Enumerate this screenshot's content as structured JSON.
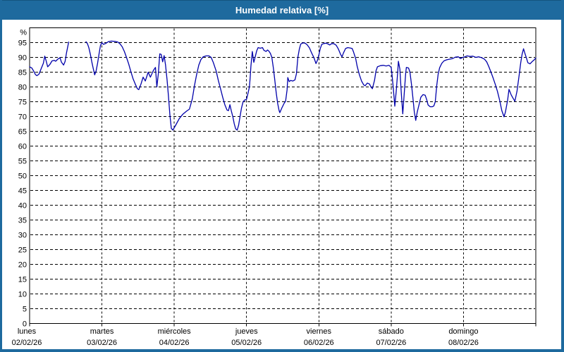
{
  "window": {
    "title": "Humedad relativa [%]",
    "titlebar_color": "#1e6a9e",
    "frame_color": "#1e6a9e"
  },
  "chart_data": {
    "type": "line",
    "title": "Humedad relativa [%]",
    "y_unit": "%",
    "ylim": [
      0,
      100
    ],
    "yticks": [
      0,
      5,
      10,
      15,
      20,
      25,
      30,
      35,
      40,
      45,
      50,
      55,
      60,
      65,
      70,
      75,
      80,
      85,
      90,
      95
    ],
    "grid": "dashed",
    "legend": "none",
    "line_color": "#0000aa",
    "x_range_days": 7,
    "days": [
      {
        "name": "lunes",
        "date": "02/02/26"
      },
      {
        "name": "martes",
        "date": "03/02/26"
      },
      {
        "name": "miércoles",
        "date": "04/02/26"
      },
      {
        "name": "jueves",
        "date": "05/02/26"
      },
      {
        "name": "viernes",
        "date": "06/02/26"
      },
      {
        "name": "sábado",
        "date": "07/02/26"
      },
      {
        "name": "domingo",
        "date": "08/02/26"
      }
    ],
    "series": [
      {
        "name": "Humedad relativa",
        "unit": "%",
        "x_unit": "days_since_monday_00h",
        "segments": [
          [
            [
              0.0,
              86.8
            ],
            [
              0.03,
              86.4
            ],
            [
              0.06,
              85.2
            ],
            [
              0.08,
              84.2
            ],
            [
              0.1,
              83.8
            ],
            [
              0.13,
              84.3
            ],
            [
              0.16,
              86.2
            ],
            [
              0.19,
              88.0
            ],
            [
              0.21,
              90.4
            ],
            [
              0.23,
              88.7
            ],
            [
              0.25,
              86.8
            ],
            [
              0.28,
              87.6
            ],
            [
              0.31,
              88.8
            ],
            [
              0.34,
              89.0
            ],
            [
              0.36,
              88.7
            ],
            [
              0.39,
              89.4
            ],
            [
              0.42,
              89.9
            ],
            [
              0.44,
              88.4
            ],
            [
              0.47,
              87.4
            ],
            [
              0.49,
              88.6
            ],
            [
              0.51,
              91.5
            ],
            [
              0.53,
              94.0
            ],
            [
              0.54,
              95.2
            ]
          ],
          [
            [
              0.78,
              95.3
            ],
            [
              0.8,
              94.6
            ],
            [
              0.82,
              93.2
            ],
            [
              0.84,
              91.0
            ],
            [
              0.86,
              88.5
            ],
            [
              0.88,
              86.2
            ],
            [
              0.9,
              84.1
            ],
            [
              0.92,
              85.5
            ],
            [
              0.94,
              88.0
            ],
            [
              0.96,
              91.2
            ],
            [
              0.98,
              94.0
            ],
            [
              1.0,
              95.0
            ],
            [
              1.02,
              94.4
            ],
            [
              1.05,
              94.7
            ],
            [
              1.09,
              95.3
            ],
            [
              1.13,
              95.5
            ],
            [
              1.18,
              95.4
            ],
            [
              1.22,
              95.2
            ],
            [
              1.25,
              94.6
            ],
            [
              1.28,
              93.6
            ],
            [
              1.31,
              92.0
            ],
            [
              1.34,
              90.0
            ],
            [
              1.37,
              87.8
            ],
            [
              1.4,
              85.2
            ],
            [
              1.43,
              82.8
            ],
            [
              1.46,
              81.0
            ],
            [
              1.49,
              79.4
            ],
            [
              1.51,
              79.1
            ],
            [
              1.54,
              81.0
            ],
            [
              1.57,
              83.3
            ],
            [
              1.6,
              82.0
            ],
            [
              1.64,
              85.0
            ],
            [
              1.67,
              83.3
            ],
            [
              1.71,
              85.5
            ],
            [
              1.74,
              86.6
            ],
            [
              1.76,
              80.0
            ],
            [
              1.78,
              84.5
            ],
            [
              1.8,
              91.2
            ],
            [
              1.82,
              91.0
            ],
            [
              1.84,
              88.5
            ],
            [
              1.86,
              90.6
            ],
            [
              1.88,
              87.4
            ],
            [
              1.9,
              82.6
            ],
            [
              1.92,
              77.0
            ],
            [
              1.94,
              70.5
            ],
            [
              1.96,
              66.0
            ],
            [
              1.98,
              65.4
            ],
            [
              2.0,
              66.2
            ],
            [
              2.03,
              67.5
            ],
            [
              2.07,
              69.3
            ],
            [
              2.12,
              70.8
            ],
            [
              2.17,
              71.8
            ],
            [
              2.21,
              72.5
            ],
            [
              2.25,
              76.0
            ],
            [
              2.28,
              80.5
            ],
            [
              2.31,
              84.2
            ],
            [
              2.34,
              87.4
            ],
            [
              2.37,
              89.3
            ],
            [
              2.4,
              90.2
            ],
            [
              2.44,
              90.5
            ],
            [
              2.48,
              90.5
            ],
            [
              2.51,
              90.0
            ],
            [
              2.54,
              88.3
            ],
            [
              2.58,
              85.4
            ],
            [
              2.61,
              82.2
            ],
            [
              2.64,
              79.4
            ],
            [
              2.67,
              76.5
            ],
            [
              2.7,
              74.0
            ],
            [
              2.73,
              72.2
            ],
            [
              2.75,
              72.0
            ],
            [
              2.77,
              74.0
            ],
            [
              2.79,
              71.8
            ],
            [
              2.81,
              70.0
            ],
            [
              2.83,
              67.5
            ],
            [
              2.85,
              65.8
            ],
            [
              2.87,
              65.4
            ],
            [
              2.89,
              67.0
            ],
            [
              2.91,
              70.0
            ],
            [
              2.93,
              72.8
            ],
            [
              2.95,
              74.8
            ],
            [
              2.97,
              75.5
            ],
            [
              3.0,
              75.8
            ],
            [
              3.02,
              77.9
            ],
            [
              3.04,
              80.0
            ],
            [
              3.05,
              83.0
            ],
            [
              3.06,
              87.0
            ],
            [
              3.08,
              92.0
            ],
            [
              3.1,
              88.3
            ],
            [
              3.12,
              90.2
            ],
            [
              3.14,
              92.2
            ],
            [
              3.16,
              93.3
            ],
            [
              3.19,
              93.1
            ],
            [
              3.22,
              93.3
            ],
            [
              3.24,
              92.4
            ],
            [
              3.27,
              92.0
            ],
            [
              3.29,
              92.5
            ],
            [
              3.31,
              92.1
            ],
            [
              3.33,
              91.3
            ],
            [
              3.35,
              90.0
            ],
            [
              3.37,
              86.5
            ],
            [
              3.39,
              82.5
            ],
            [
              3.41,
              78.0
            ],
            [
              3.43,
              74.5
            ],
            [
              3.45,
              72.0
            ],
            [
              3.46,
              71.3
            ],
            [
              3.49,
              73.0
            ],
            [
              3.52,
              74.5
            ],
            [
              3.54,
              75.2
            ],
            [
              3.56,
              79.0
            ],
            [
              3.57,
              83.2
            ],
            [
              3.59,
              81.8
            ],
            [
              3.61,
              82.2
            ],
            [
              3.64,
              82.0
            ],
            [
              3.67,
              82.4
            ],
            [
              3.69,
              84.5
            ],
            [
              3.71,
              90.0
            ],
            [
              3.73,
              92.8
            ],
            [
              3.75,
              94.5
            ],
            [
              3.78,
              94.9
            ],
            [
              3.81,
              94.8
            ],
            [
              3.84,
              94.2
            ],
            [
              3.87,
              93.2
            ],
            [
              3.9,
              91.5
            ],
            [
              3.93,
              90.0
            ],
            [
              3.95,
              88.6
            ],
            [
              3.96,
              87.9
            ],
            [
              3.98,
              89.0
            ],
            [
              4.0,
              90.8
            ],
            [
              4.02,
              93.0
            ],
            [
              4.04,
              94.4
            ],
            [
              4.07,
              94.7
            ],
            [
              4.1,
              94.8
            ],
            [
              4.13,
              94.5
            ],
            [
              4.15,
              94.2
            ],
            [
              4.18,
              94.7
            ],
            [
              4.21,
              94.6
            ],
            [
              4.24,
              94.1
            ],
            [
              4.27,
              92.8
            ],
            [
              4.3,
              91.0
            ],
            [
              4.32,
              90.2
            ],
            [
              4.34,
              91.5
            ],
            [
              4.37,
              93.0
            ],
            [
              4.4,
              93.3
            ],
            [
              4.43,
              93.2
            ],
            [
              4.46,
              93.0
            ],
            [
              4.48,
              91.8
            ],
            [
              4.51,
              89.5
            ],
            [
              4.53,
              87.0
            ],
            [
              4.56,
              84.2
            ],
            [
              4.59,
              82.0
            ],
            [
              4.62,
              80.7
            ],
            [
              4.64,
              80.4
            ],
            [
              4.67,
              81.3
            ],
            [
              4.7,
              81.0
            ],
            [
              4.72,
              80.0
            ],
            [
              4.74,
              79.4
            ],
            [
              4.77,
              82.3
            ],
            [
              4.79,
              85.4
            ],
            [
              4.81,
              86.8
            ],
            [
              4.85,
              87.2
            ],
            [
              4.89,
              87.3
            ],
            [
              4.93,
              87.1
            ],
            [
              4.97,
              87.3
            ],
            [
              5.0,
              86.6
            ],
            [
              5.01,
              84.5
            ],
            [
              5.03,
              79.5
            ],
            [
              5.05,
              73.5
            ],
            [
              5.07,
              78.5
            ],
            [
              5.09,
              85.0
            ],
            [
              5.1,
              88.7
            ],
            [
              5.12,
              86.0
            ],
            [
              5.14,
              78.0
            ],
            [
              5.16,
              70.9
            ],
            [
              5.18,
              77.5
            ],
            [
              5.2,
              84.5
            ],
            [
              5.21,
              86.6
            ],
            [
              5.24,
              86.4
            ],
            [
              5.26,
              85.0
            ],
            [
              5.28,
              81.0
            ],
            [
              5.3,
              76.5
            ],
            [
              5.32,
              71.5
            ],
            [
              5.34,
              68.7
            ],
            [
              5.36,
              71.5
            ],
            [
              5.39,
              74.5
            ],
            [
              5.41,
              76.5
            ],
            [
              5.44,
              77.4
            ],
            [
              5.47,
              77.2
            ],
            [
              5.49,
              75.8
            ],
            [
              5.51,
              73.9
            ],
            [
              5.54,
              73.3
            ],
            [
              5.57,
              73.3
            ],
            [
              5.59,
              73.6
            ],
            [
              5.61,
              75.0
            ],
            [
              5.63,
              80.5
            ],
            [
              5.65,
              84.3
            ],
            [
              5.67,
              86.5
            ],
            [
              5.7,
              88.0
            ],
            [
              5.73,
              88.8
            ],
            [
              5.77,
              89.2
            ],
            [
              5.81,
              89.4
            ],
            [
              5.85,
              89.6
            ],
            [
              5.89,
              90.1
            ],
            [
              5.93,
              90.2
            ],
            [
              5.96,
              89.6
            ],
            [
              5.99,
              90.0
            ],
            [
              6.02,
              90.2
            ],
            [
              6.05,
              90.5
            ],
            [
              6.09,
              90.3
            ],
            [
              6.13,
              90.4
            ],
            [
              6.17,
              90.0
            ],
            [
              6.21,
              90.2
            ],
            [
              6.25,
              89.9
            ],
            [
              6.29,
              89.4
            ],
            [
              6.32,
              88.5
            ],
            [
              6.35,
              86.9
            ],
            [
              6.38,
              85.0
            ],
            [
              6.41,
              83.0
            ],
            [
              6.44,
              80.8
            ],
            [
              6.47,
              78.5
            ],
            [
              6.5,
              75.5
            ],
            [
              6.53,
              72.0
            ],
            [
              6.56,
              69.9
            ],
            [
              6.58,
              71.5
            ],
            [
              6.61,
              75.5
            ],
            [
              6.63,
              79.2
            ],
            [
              6.66,
              77.3
            ],
            [
              6.69,
              76.0
            ],
            [
              6.71,
              75.2
            ],
            [
              6.74,
              78.5
            ],
            [
              6.77,
              84.0
            ],
            [
              6.79,
              88.0
            ],
            [
              6.81,
              91.0
            ],
            [
              6.83,
              92.9
            ],
            [
              6.85,
              91.3
            ],
            [
              6.87,
              89.8
            ],
            [
              6.89,
              88.2
            ],
            [
              6.92,
              87.8
            ],
            [
              6.95,
              88.6
            ],
            [
              6.98,
              89.2
            ],
            [
              7.0,
              89.8
            ]
          ]
        ]
      }
    ]
  }
}
